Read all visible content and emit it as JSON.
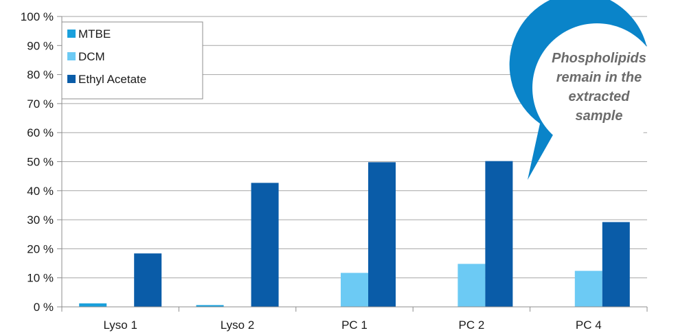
{
  "chart_data": {
    "type": "bar",
    "categories": [
      "Lyso 1",
      "Lyso 2",
      "PC 1",
      "PC 2",
      "PC 4"
    ],
    "series": [
      {
        "name": "MTBE",
        "values": [
          1.2,
          0.6,
          0,
          0,
          0
        ],
        "color": "#1aa0dc"
      },
      {
        "name": "DCM",
        "values": [
          0,
          0,
          11.7,
          14.8,
          12.4
        ],
        "color": "#6ccaf4"
      },
      {
        "name": "Ethyl Acetate",
        "values": [
          18.4,
          42.7,
          49.8,
          50.2,
          29.2
        ],
        "color": "#0a5ca8"
      }
    ],
    "ylim": [
      0,
      100
    ],
    "y_ticks": [
      "0 %",
      "10 %",
      "20 %",
      "30 %",
      "40 %",
      "50 %",
      "60 %",
      "70 %",
      "80 %",
      "90 %",
      "100 %"
    ],
    "grid": true,
    "legend_position": "top-left"
  },
  "callout": {
    "lines": [
      "Phospholipids",
      "remain in the",
      "extracted",
      "sample"
    ],
    "color": "#0a84c9"
  }
}
